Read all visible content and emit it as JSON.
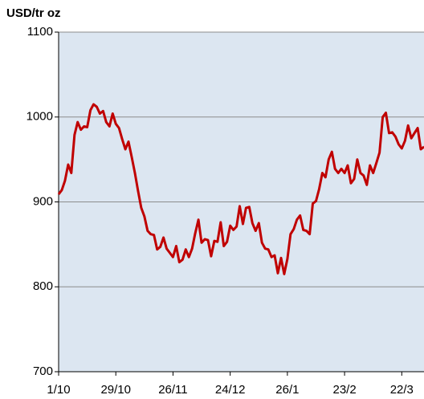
{
  "chart_data": {
    "type": "line",
    "y_label": "USD/tr oz",
    "color": "#c00000",
    "grid": true,
    "x": [
      0,
      1,
      2,
      3,
      4,
      5,
      6,
      7,
      8,
      9,
      10,
      11,
      12,
      13,
      14,
      15,
      16,
      17,
      18,
      19,
      20,
      21,
      22,
      23,
      24,
      25,
      26,
      27,
      28,
      29,
      30,
      31,
      32,
      33,
      34,
      35,
      36,
      37,
      38,
      39,
      40,
      41,
      42,
      43,
      44,
      45,
      46,
      47,
      48,
      49,
      50,
      51,
      52,
      53,
      54,
      55,
      56,
      57,
      58,
      59,
      60,
      61,
      62,
      63,
      64,
      65,
      66,
      67,
      68,
      69,
      70,
      71,
      72,
      73,
      74,
      75,
      76,
      77,
      78,
      79,
      80,
      81,
      82,
      83,
      84,
      85,
      86,
      87,
      88,
      89,
      90,
      91,
      92,
      93,
      94,
      95,
      96,
      97,
      98,
      99,
      100,
      101,
      102,
      103,
      104,
      105,
      106,
      107,
      108,
      109,
      110,
      111,
      112,
      113,
      114,
      115
    ],
    "values": [
      909,
      914,
      925,
      944,
      934,
      979,
      994,
      985,
      989,
      988,
      1008,
      1015,
      1012,
      1004,
      1007,
      994,
      989,
      1004,
      992,
      987,
      974,
      962,
      971,
      953,
      934,
      913,
      893,
      883,
      866,
      862,
      861,
      844,
      847,
      858,
      845,
      840,
      835,
      848,
      829,
      832,
      844,
      835,
      845,
      863,
      879,
      852,
      856,
      855,
      836,
      854,
      853,
      876,
      848,
      853,
      872,
      867,
      871,
      895,
      874,
      893,
      894,
      875,
      866,
      875,
      852,
      845,
      844,
      835,
      837,
      816,
      834,
      815,
      833,
      862,
      868,
      879,
      884,
      867,
      866,
      862,
      898,
      901,
      915,
      934,
      929,
      950,
      959,
      939,
      934,
      939,
      934,
      943,
      922,
      927,
      950,
      934,
      931,
      920,
      943,
      934,
      946,
      958,
      1000,
      1005,
      981,
      982,
      977,
      968,
      963,
      972,
      990,
      975,
      981,
      987,
      962,
      965
    ],
    "xlim": [
      0,
      115
    ],
    "xticks": [
      {
        "value": 0,
        "label": "1/10"
      },
      {
        "value": 18,
        "label": "29/10"
      },
      {
        "value": 36,
        "label": "26/11"
      },
      {
        "value": 54,
        "label": "24/12"
      },
      {
        "value": 72,
        "label": "26/1"
      },
      {
        "value": 90,
        "label": "23/2"
      },
      {
        "value": 108,
        "label": "22/3"
      }
    ],
    "ylim": [
      700,
      1100
    ],
    "yticks": [
      700,
      800,
      900,
      1000,
      1100
    ]
  }
}
